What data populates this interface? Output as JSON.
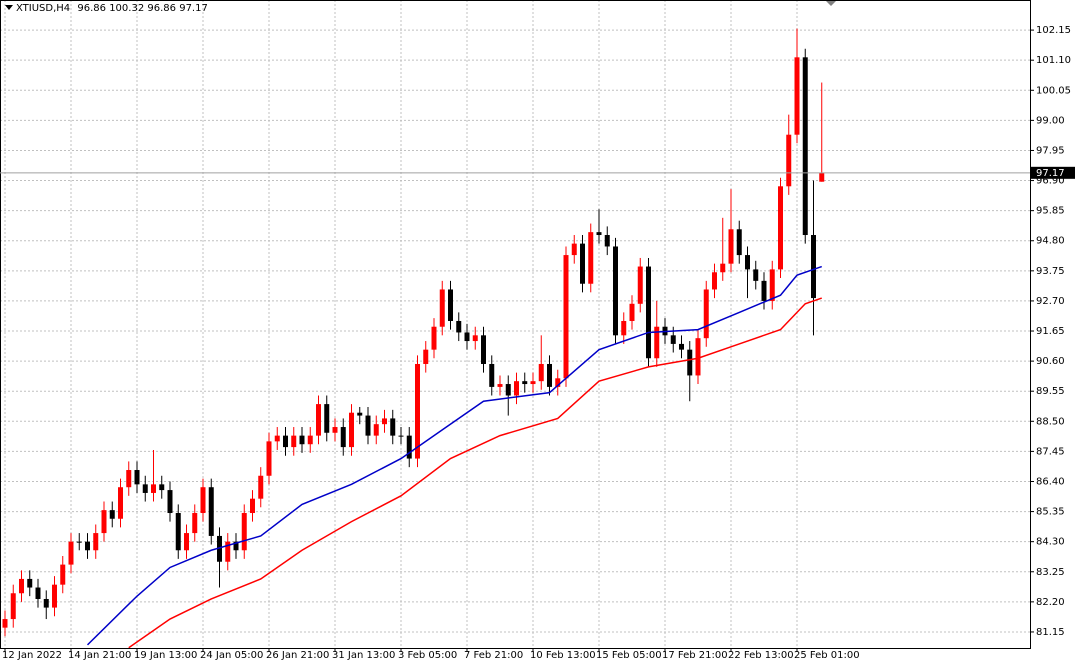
{
  "chart_data": {
    "type": "candlestick",
    "title": "XTIUSD,H4",
    "categories": [
      "12 Jan 2022",
      null,
      null,
      null,
      null,
      null,
      null,
      null,
      "14 Jan 21:00",
      null,
      null,
      null,
      null,
      null,
      null,
      null,
      "19 Jan 13:00",
      null,
      null,
      null,
      null,
      null,
      null,
      null,
      "24 Jan 05:00",
      null,
      null,
      null,
      null,
      null,
      null,
      null,
      "26 Jan 21:00",
      null,
      null,
      null,
      null,
      null,
      null,
      null,
      "31 Jan 13:00",
      null,
      null,
      null,
      null,
      null,
      null,
      null,
      "3 Feb 05:00",
      null,
      null,
      null,
      null,
      null,
      null,
      null,
      "7 Feb 21:00",
      null,
      null,
      null,
      null,
      null,
      null,
      null,
      "10 Feb 13:00",
      null,
      null,
      null,
      null,
      null,
      null,
      null,
      "15 Feb 05:00",
      null,
      null,
      null,
      null,
      null,
      null,
      null,
      "17 Feb 21:00",
      null,
      null,
      null,
      null,
      null,
      null,
      null,
      "22 Feb 13:00",
      null,
      null,
      null,
      null,
      null,
      null,
      null,
      "25 Feb 01:00",
      null,
      null,
      null
    ],
    "open": [
      81.3,
      81.6,
      82.5,
      83.0,
      82.7,
      82.3,
      82.0,
      82.8,
      83.5,
      84.3,
      84.3,
      84.0,
      84.6,
      85.4,
      85.1,
      86.2,
      86.8,
      86.3,
      86.0,
      86.3,
      86.1,
      85.3,
      84.0,
      84.6,
      85.3,
      86.2,
      84.5,
      83.6,
      84.3,
      84.0,
      85.3,
      85.8,
      86.6,
      87.8,
      88.0,
      87.6,
      88.0,
      87.7,
      88.0,
      89.1,
      88.1,
      88.3,
      87.6,
      88.8,
      88.7,
      88.0,
      88.4,
      88.6,
      88.0,
      88.0,
      87.2,
      90.5,
      91.0,
      91.8,
      93.1,
      92.0,
      91.6,
      91.3,
      91.5,
      90.5,
      89.7,
      89.8,
      89.4,
      89.9,
      89.8,
      89.9,
      90.5,
      89.7,
      90.0,
      94.3,
      94.7,
      93.3,
      95.1,
      95.0,
      94.6,
      91.5,
      92.0,
      92.6,
      93.9,
      90.7,
      91.8,
      91.5,
      91.2,
      91.0,
      90.1,
      91.4,
      93.1,
      93.7,
      94.0,
      95.2,
      94.3,
      93.8,
      93.4,
      92.7,
      93.8,
      96.7,
      98.5,
      101.2,
      95.0,
      96.86
    ],
    "high": [
      81.9,
      82.8,
      83.3,
      83.3,
      83.0,
      82.6,
      83.1,
      83.8,
      84.6,
      84.6,
      84.6,
      84.9,
      85.7,
      85.7,
      86.5,
      87.1,
      87.1,
      86.6,
      87.5,
      86.6,
      86.4,
      85.6,
      84.9,
      85.6,
      86.5,
      86.5,
      84.8,
      84.6,
      84.6,
      85.6,
      86.1,
      86.9,
      88.1,
      88.3,
      88.3,
      88.3,
      88.3,
      88.3,
      89.4,
      89.4,
      88.6,
      88.6,
      89.1,
      89.0,
      89.0,
      88.7,
      88.9,
      88.9,
      88.3,
      88.3,
      90.8,
      91.3,
      92.1,
      93.4,
      93.4,
      92.3,
      91.9,
      91.8,
      91.8,
      90.8,
      90.1,
      90.1,
      90.2,
      90.2,
      90.2,
      91.5,
      90.8,
      90.3,
      94.6,
      95.0,
      95.0,
      95.4,
      95.9,
      95.3,
      94.9,
      92.3,
      92.9,
      94.2,
      94.2,
      92.7,
      92.1,
      91.8,
      91.5,
      91.3,
      91.7,
      93.4,
      94.0,
      95.6,
      96.6,
      95.5,
      94.6,
      94.1,
      93.7,
      94.1,
      97.0,
      99.2,
      102.2,
      101.5,
      96.9,
      100.32
    ],
    "low": [
      81.0,
      81.3,
      82.2,
      82.4,
      82.0,
      81.6,
      81.7,
      82.5,
      83.2,
      84.0,
      83.7,
      83.7,
      84.3,
      84.8,
      84.8,
      85.9,
      86.0,
      85.7,
      85.7,
      85.8,
      85.0,
      83.7,
      83.7,
      84.3,
      85.0,
      84.2,
      82.7,
      83.3,
      83.7,
      83.7,
      85.0,
      85.5,
      86.3,
      87.5,
      87.3,
      87.3,
      87.4,
      87.4,
      87.7,
      87.8,
      87.8,
      87.3,
      87.3,
      88.4,
      87.7,
      87.7,
      88.1,
      87.7,
      87.7,
      86.9,
      86.9,
      90.2,
      90.7,
      91.5,
      91.7,
      91.3,
      91.0,
      91.0,
      90.2,
      89.4,
      89.4,
      88.7,
      89.1,
      89.5,
      89.5,
      89.6,
      89.4,
      89.4,
      89.7,
      94.0,
      93.0,
      93.0,
      94.7,
      94.3,
      91.2,
      91.2,
      91.7,
      92.3,
      90.4,
      90.4,
      91.2,
      90.9,
      90.7,
      89.2,
      89.8,
      91.1,
      92.8,
      93.4,
      93.7,
      94.0,
      92.8,
      93.1,
      92.4,
      92.4,
      93.5,
      96.4,
      98.2,
      94.7,
      91.5,
      96.86
    ],
    "close": [
      81.6,
      82.5,
      83.0,
      82.7,
      82.3,
      82.0,
      82.8,
      83.5,
      84.3,
      84.3,
      84.0,
      84.6,
      85.4,
      85.1,
      86.2,
      86.8,
      86.3,
      86.0,
      86.3,
      86.1,
      85.3,
      84.0,
      84.6,
      85.3,
      86.2,
      84.5,
      83.6,
      84.3,
      84.0,
      85.3,
      85.8,
      86.6,
      87.8,
      88.0,
      87.6,
      88.0,
      87.7,
      88.0,
      89.1,
      88.1,
      88.3,
      87.6,
      88.8,
      88.7,
      88.0,
      88.4,
      88.6,
      88.0,
      88.0,
      87.2,
      90.5,
      91.0,
      91.8,
      93.1,
      92.0,
      91.6,
      91.3,
      91.5,
      90.5,
      89.7,
      89.8,
      89.4,
      89.9,
      89.8,
      89.9,
      90.5,
      89.7,
      90.0,
      94.3,
      94.7,
      93.3,
      95.1,
      95.0,
      94.6,
      91.5,
      92.0,
      92.6,
      93.9,
      90.7,
      91.8,
      91.5,
      91.2,
      91.0,
      90.1,
      91.4,
      93.1,
      93.7,
      94.0,
      95.2,
      94.3,
      93.8,
      93.4,
      92.7,
      93.8,
      96.7,
      98.5,
      101.2,
      95.0,
      92.8,
      97.17
    ],
    "up_color": "#ff0000",
    "down_color": "#000000",
    "series": [
      {
        "color": "#0000c8",
        "x": [
          10,
          16,
          20,
          25,
          31,
          36,
          42,
          48,
          53,
          58,
          66,
          72,
          78,
          84,
          89,
          94,
          96,
          99
        ],
        "values": [
          80.7,
          82.4,
          83.4,
          84.0,
          84.5,
          85.6,
          86.3,
          87.2,
          88.2,
          89.2,
          89.5,
          91.0,
          91.6,
          91.7,
          92.3,
          92.9,
          93.6,
          93.9
        ]
      },
      {
        "color": "#ff0000",
        "x": [
          15,
          20,
          25,
          31,
          36,
          42,
          48,
          54,
          60,
          67,
          72,
          78,
          84,
          89,
          94,
          97,
          99
        ],
        "values": [
          80.6,
          81.6,
          82.3,
          83.0,
          84.0,
          85.0,
          85.9,
          87.2,
          88.0,
          88.6,
          89.9,
          90.4,
          90.7,
          91.2,
          91.7,
          92.6,
          92.8
        ]
      }
    ],
    "ylim": [
      80.59,
      103.2
    ],
    "yticks": [
      81.15,
      {
        "value": 82.2,
        "label": "82.20"
      },
      83.25,
      {
        "value": 84.3,
        "label": "84.30"
      },
      85.35,
      {
        "value": 86.4,
        "label": "86.40"
      },
      87.45,
      {
        "value": 88.5,
        "label": "88.50"
      },
      89.55,
      {
        "value": 90.6,
        "label": "90.60"
      },
      91.65,
      {
        "value": 92.7,
        "label": "92.70"
      },
      93.75,
      {
        "value": 94.8,
        "label": "94.80"
      },
      95.85,
      {
        "value": 96.9,
        "label": "96.90"
      },
      97.95,
      {
        "value": 99.0,
        "label": "99.00"
      },
      100.05,
      {
        "value": 101.1,
        "label": "101.10"
      },
      102.15
    ],
    "grid": true
  }
}
